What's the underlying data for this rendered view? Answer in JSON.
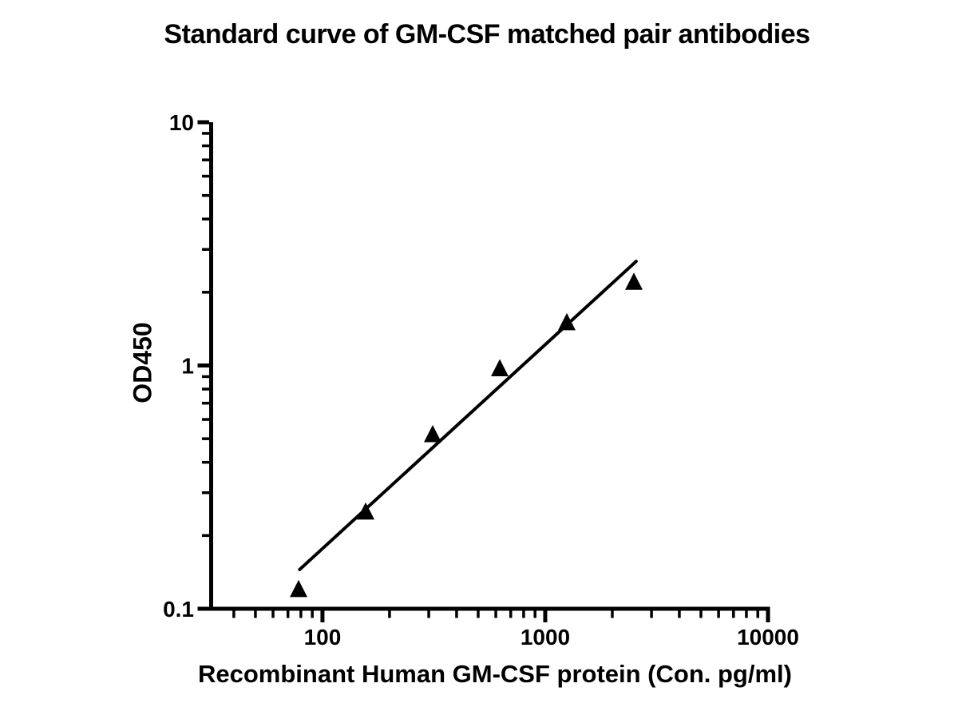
{
  "chart_data": {
    "type": "scatter",
    "title": "Standard curve of GM-CSF matched pair antibodies",
    "xlabel": "Recombinant Human GM-CSF protein (Con. pg/ml)",
    "ylabel": "OD450",
    "x_scale": "log10",
    "y_scale": "log10",
    "xlim": [
      31,
      10000
    ],
    "ylim": [
      0.1,
      10
    ],
    "grid": false,
    "legend": false,
    "x_major_ticks": [
      100,
      1000,
      10000
    ],
    "x_major_tick_labels": [
      "100",
      "1000",
      "10000"
    ],
    "x_minor_ticks": [
      40,
      50,
      60,
      70,
      80,
      90,
      200,
      300,
      400,
      500,
      600,
      700,
      800,
      900,
      2000,
      3000,
      4000,
      5000,
      6000,
      7000,
      8000,
      9000
    ],
    "y_major_ticks": [
      0.1,
      1,
      10
    ],
    "y_major_tick_labels": [
      "0.1",
      "1",
      "10"
    ],
    "y_minor_ticks": [
      0.2,
      0.3,
      0.4,
      0.5,
      0.6,
      0.7,
      0.8,
      0.9,
      2,
      3,
      4,
      5,
      6,
      7,
      8,
      9
    ],
    "points": {
      "marker": "filled-triangle-up",
      "x": [
        78.125,
        156.25,
        312.5,
        625,
        1250,
        2500
      ],
      "y": [
        0.12,
        0.25,
        0.52,
        0.97,
        1.5,
        2.2
      ]
    },
    "trend_line": {
      "x_start": 79,
      "y_start": 0.145,
      "x_end": 2560,
      "y_end": 2.68
    },
    "colors": {
      "axis": "#000000",
      "marker": "#000000",
      "line": "#000000",
      "text": "#000000",
      "background": "#ffffff"
    }
  }
}
